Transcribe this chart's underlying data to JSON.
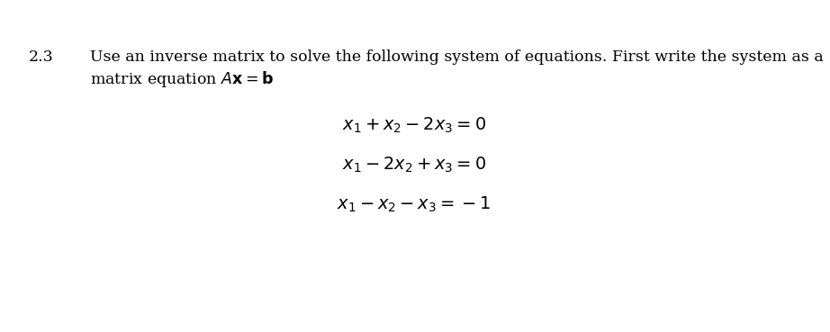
{
  "background_color": "#ffffff",
  "section_number": "2.3",
  "body_text_line1": "Use an inverse matrix to solve the following system of equations. First write the system as a",
  "body_text_line2": "matrix equation ",
  "body_text_fontsize": 12.5,
  "section_num_fontsize": 12.5,
  "eq1": "$x_1 + x_2 - 2x_3 = 0$",
  "eq2": "$x_1 - 2x_2 + x_3 = 0$",
  "eq3": "$x_1 - x_2 - x_3 = -1$",
  "eq_fontsize": 14,
  "fig_width": 9.22,
  "fig_height": 3.69,
  "dpi": 100
}
